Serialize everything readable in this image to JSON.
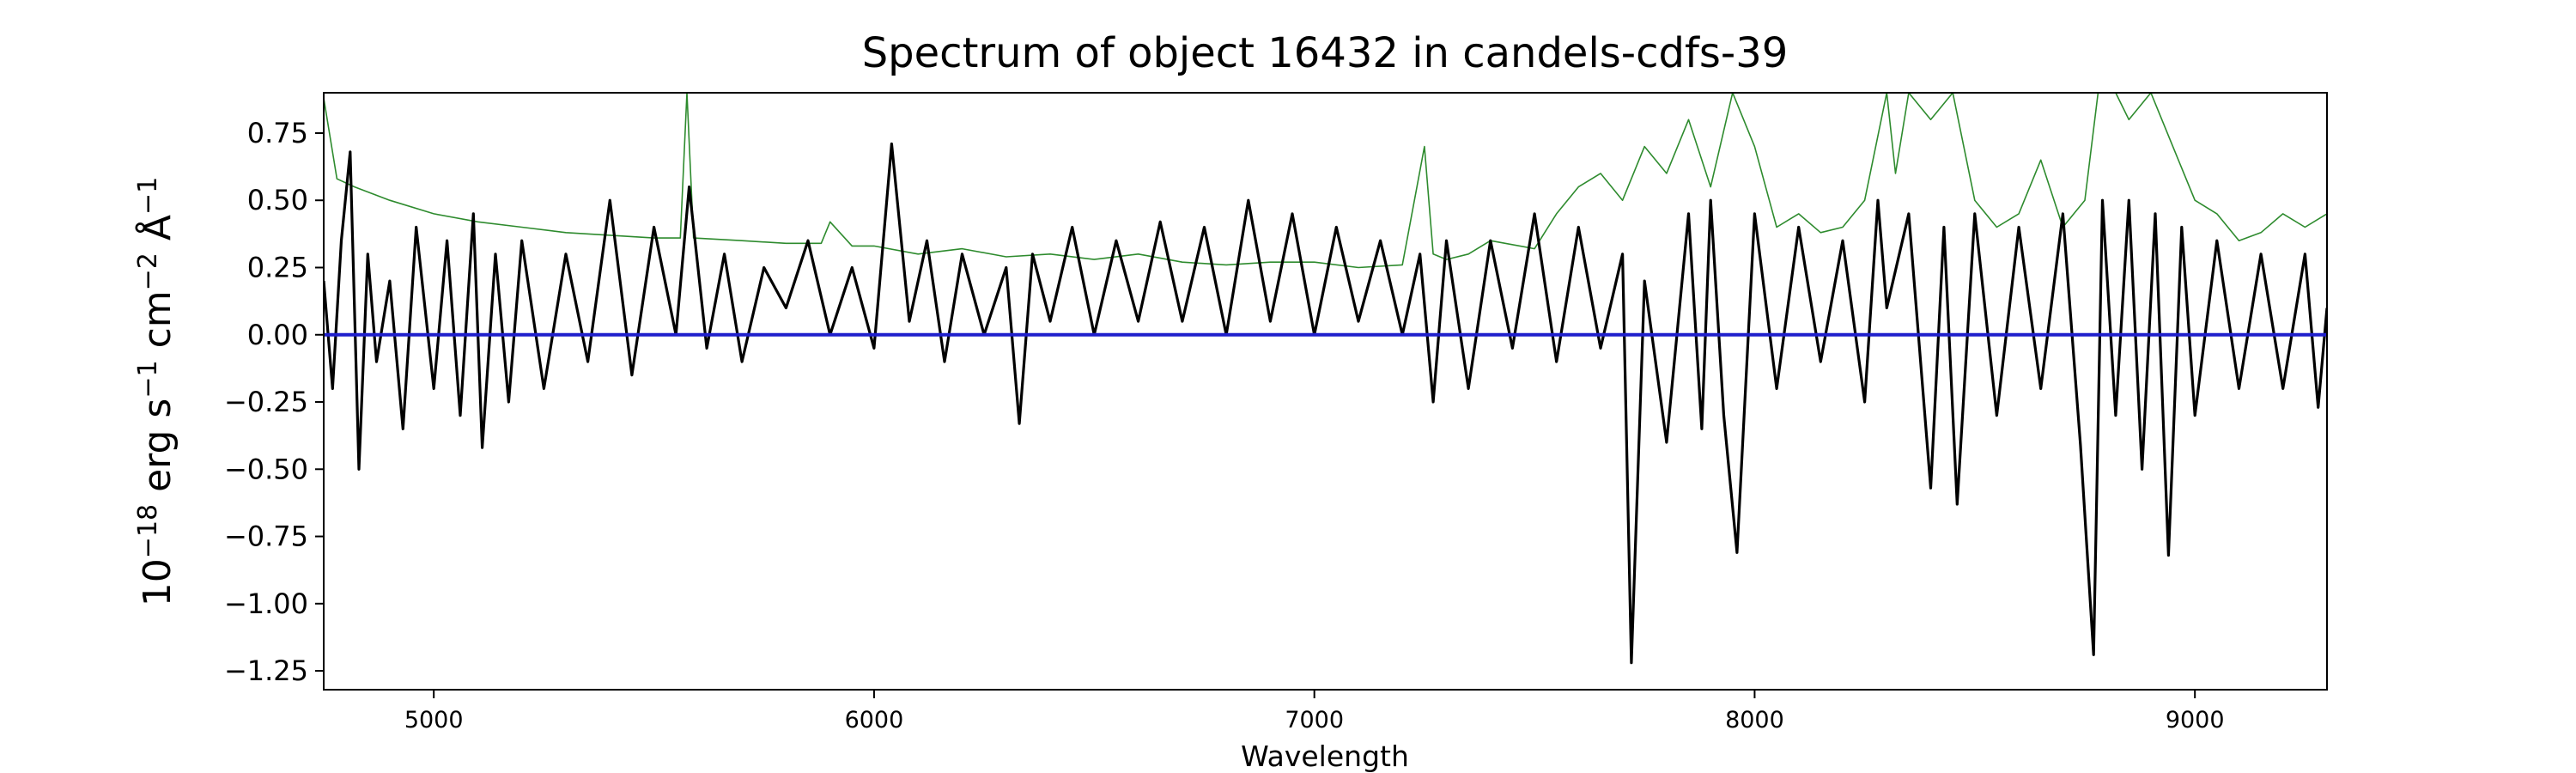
{
  "chart_data": {
    "type": "line",
    "title": "Spectrum of object 16432 in candels-cdfs-39",
    "xlabel": "Wavelength",
    "ylabel": {
      "parts": [
        {
          "text": "10",
          "sup": false
        },
        {
          "text": "−18",
          "sup": true
        },
        {
          "text": " erg s",
          "sup": false
        },
        {
          "text": "−1",
          "sup": true
        },
        {
          "text": " cm",
          "sup": false
        },
        {
          "text": "−2",
          "sup": true
        },
        {
          "text": " Å",
          "sup": false
        },
        {
          "text": "−1",
          "sup": true
        }
      ]
    },
    "xlim": [
      4750,
      9300
    ],
    "ylim": [
      -1.32,
      0.9
    ],
    "xticks": [
      {
        "value": 5000,
        "label": "5000"
      },
      {
        "value": 6000,
        "label": "6000"
      },
      {
        "value": 7000,
        "label": "7000"
      },
      {
        "value": 8000,
        "label": "8000"
      },
      {
        "value": 9000,
        "label": "9000"
      }
    ],
    "yticks": [
      {
        "value": 0.75,
        "label": "0.75"
      },
      {
        "value": 0.5,
        "label": "0.50"
      },
      {
        "value": 0.25,
        "label": "0.25"
      },
      {
        "value": 0.0,
        "label": "0.00"
      },
      {
        "value": -0.25,
        "label": "−0.25"
      },
      {
        "value": -0.5,
        "label": "−0.50"
      },
      {
        "value": -0.75,
        "label": "−0.75"
      },
      {
        "value": -1.0,
        "label": "−1.00"
      },
      {
        "value": -1.25,
        "label": "−1.25"
      }
    ],
    "grid": false,
    "legend": "none",
    "series": [
      {
        "role": "error",
        "color": "#2e8b2e",
        "x": [
          4750,
          4780,
          4820,
          4900,
          5000,
          5100,
          5200,
          5300,
          5400,
          5500,
          5560,
          5575,
          5590,
          5700,
          5800,
          5880,
          5900,
          5950,
          6000,
          6100,
          6200,
          6300,
          6400,
          6500,
          6600,
          6700,
          6800,
          6900,
          7000,
          7100,
          7200,
          7250,
          7270,
          7300,
          7350,
          7400,
          7500,
          7550,
          7600,
          7650,
          7700,
          7750,
          7800,
          7850,
          7900,
          7950,
          8000,
          8050,
          8100,
          8150,
          8200,
          8250,
          8300,
          8320,
          8350,
          8400,
          8450,
          8500,
          8550,
          8600,
          8650,
          8700,
          8750,
          8780,
          8820,
          8850,
          8900,
          8950,
          9000,
          9050,
          9100,
          9150,
          9200,
          9250,
          9300
        ],
        "y": [
          0.88,
          0.58,
          0.55,
          0.5,
          0.45,
          0.42,
          0.4,
          0.38,
          0.37,
          0.36,
          0.36,
          0.9,
          0.36,
          0.35,
          0.34,
          0.34,
          0.42,
          0.33,
          0.33,
          0.3,
          0.32,
          0.29,
          0.3,
          0.28,
          0.3,
          0.27,
          0.26,
          0.27,
          0.27,
          0.25,
          0.26,
          0.7,
          0.3,
          0.28,
          0.3,
          0.35,
          0.32,
          0.45,
          0.55,
          0.6,
          0.5,
          0.7,
          0.6,
          0.8,
          0.55,
          0.9,
          0.7,
          0.4,
          0.45,
          0.38,
          0.4,
          0.5,
          0.9,
          0.6,
          0.9,
          0.8,
          0.9,
          0.5,
          0.4,
          0.45,
          0.65,
          0.4,
          0.5,
          0.9,
          0.9,
          0.8,
          0.9,
          0.7,
          0.5,
          0.45,
          0.35,
          0.38,
          0.45,
          0.4,
          0.45
        ]
      },
      {
        "role": "flux",
        "color": "#000000",
        "x": [
          4750,
          4770,
          4790,
          4810,
          4830,
          4850,
          4870,
          4900,
          4930,
          4960,
          5000,
          5030,
          5060,
          5090,
          5110,
          5140,
          5170,
          5200,
          5250,
          5300,
          5350,
          5400,
          5450,
          5500,
          5550,
          5580,
          5620,
          5660,
          5700,
          5750,
          5800,
          5850,
          5900,
          5950,
          6000,
          6040,
          6080,
          6120,
          6160,
          6200,
          6250,
          6300,
          6330,
          6360,
          6400,
          6450,
          6500,
          6550,
          6600,
          6650,
          6700,
          6750,
          6800,
          6850,
          6900,
          6950,
          7000,
          7050,
          7100,
          7150,
          7200,
          7240,
          7270,
          7300,
          7350,
          7400,
          7450,
          7500,
          7550,
          7600,
          7650,
          7700,
          7720,
          7750,
          7800,
          7850,
          7880,
          7900,
          7930,
          7960,
          8000,
          8050,
          8100,
          8150,
          8200,
          8250,
          8280,
          8300,
          8350,
          8400,
          8430,
          8460,
          8500,
          8550,
          8600,
          8650,
          8700,
          8740,
          8770,
          8790,
          8820,
          8850,
          8880,
          8910,
          8940,
          8970,
          9000,
          9050,
          9100,
          9150,
          9200,
          9250,
          9280,
          9300
        ],
        "y": [
          0.2,
          -0.2,
          0.35,
          0.68,
          -0.5,
          0.3,
          -0.1,
          0.2,
          -0.35,
          0.4,
          -0.2,
          0.35,
          -0.3,
          0.45,
          -0.42,
          0.3,
          -0.25,
          0.35,
          -0.2,
          0.3,
          -0.1,
          0.5,
          -0.15,
          0.4,
          0.0,
          0.55,
          -0.05,
          0.3,
          -0.1,
          0.25,
          0.1,
          0.35,
          0.0,
          0.25,
          -0.05,
          0.71,
          0.05,
          0.35,
          -0.1,
          0.3,
          0.0,
          0.25,
          -0.33,
          0.3,
          0.05,
          0.4,
          0.0,
          0.35,
          0.05,
          0.42,
          0.05,
          0.4,
          0.0,
          0.5,
          0.05,
          0.45,
          0.0,
          0.4,
          0.05,
          0.35,
          0.0,
          0.3,
          -0.25,
          0.35,
          -0.2,
          0.35,
          -0.05,
          0.45,
          -0.1,
          0.4,
          -0.05,
          0.3,
          -1.22,
          0.2,
          -0.4,
          0.45,
          -0.35,
          0.5,
          -0.3,
          -0.81,
          0.45,
          -0.2,
          0.4,
          -0.1,
          0.35,
          -0.25,
          0.5,
          0.1,
          0.45,
          -0.57,
          0.4,
          -0.63,
          0.45,
          -0.3,
          0.4,
          -0.2,
          0.45,
          -0.41,
          -1.19,
          0.5,
          -0.3,
          0.5,
          -0.5,
          0.45,
          -0.82,
          0.4,
          -0.3,
          0.35,
          -0.2,
          0.3,
          -0.2,
          0.3,
          -0.27,
          0.1
        ]
      },
      {
        "role": "model",
        "color": "#1f1fcc",
        "x": [
          4750,
          9300
        ],
        "y": [
          0.0,
          0.0
        ]
      }
    ]
  }
}
